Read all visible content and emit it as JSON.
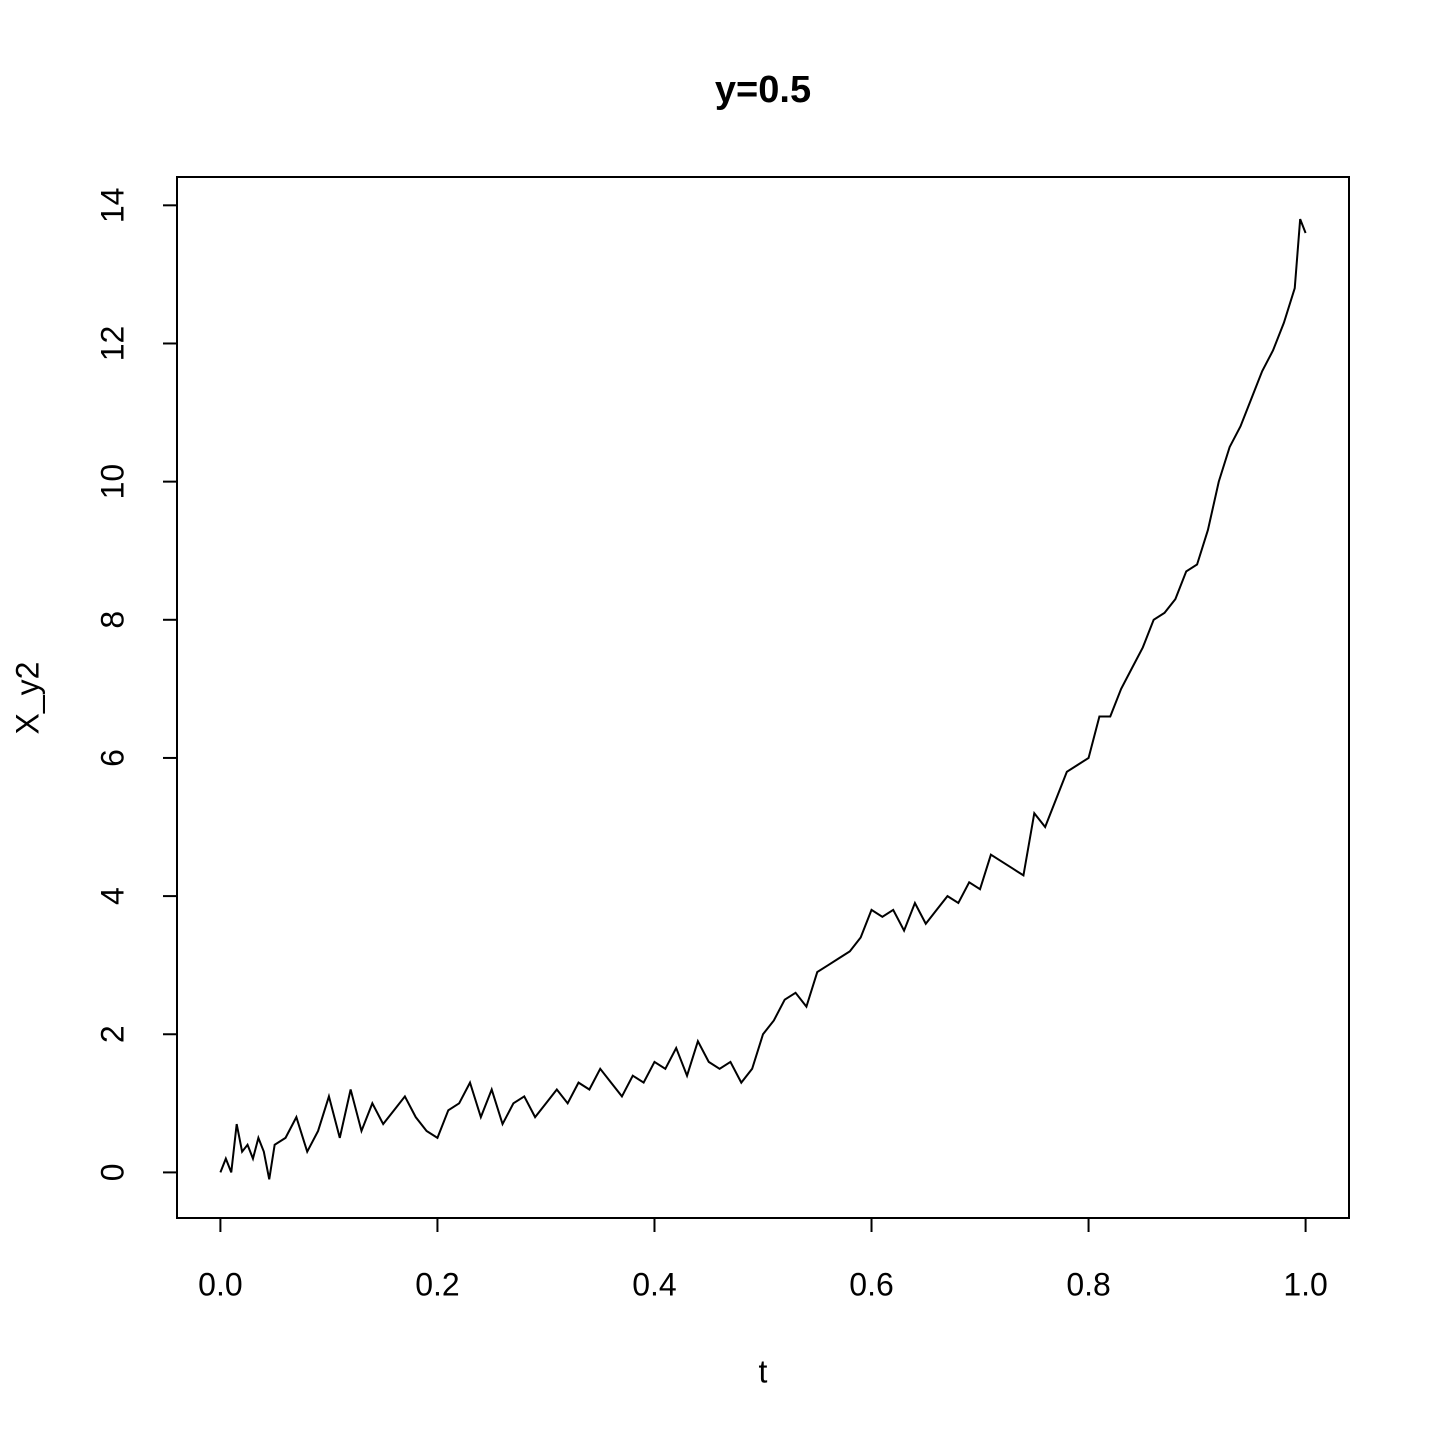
{
  "chart_data": {
    "type": "line",
    "title": "y=0.5",
    "xlabel": "t",
    "ylabel": "X_y2",
    "x": [
      0,
      0.005,
      0.01,
      0.015,
      0.02,
      0.025,
      0.03,
      0.035,
      0.04,
      0.045,
      0.05,
      0.06,
      0.07,
      0.08,
      0.09,
      0.1,
      0.11,
      0.12,
      0.13,
      0.14,
      0.15,
      0.16,
      0.17,
      0.18,
      0.19,
      0.2,
      0.21,
      0.22,
      0.23,
      0.24,
      0.25,
      0.26,
      0.27,
      0.28,
      0.29,
      0.3,
      0.31,
      0.32,
      0.33,
      0.34,
      0.35,
      0.36,
      0.37,
      0.38,
      0.39,
      0.4,
      0.41,
      0.42,
      0.43,
      0.44,
      0.45,
      0.46,
      0.47,
      0.48,
      0.49,
      0.5,
      0.51,
      0.52,
      0.53,
      0.54,
      0.55,
      0.56,
      0.57,
      0.58,
      0.59,
      0.6,
      0.61,
      0.62,
      0.63,
      0.64,
      0.65,
      0.66,
      0.67,
      0.68,
      0.69,
      0.7,
      0.71,
      0.72,
      0.73,
      0.74,
      0.75,
      0.76,
      0.77,
      0.78,
      0.79,
      0.8,
      0.81,
      0.82,
      0.83,
      0.84,
      0.85,
      0.86,
      0.87,
      0.88,
      0.89,
      0.9,
      0.91,
      0.92,
      0.93,
      0.94,
      0.95,
      0.96,
      0.97,
      0.98,
      0.99,
      0.995,
      1
    ],
    "series": [
      {
        "name": "X_y2",
        "color": "#000000",
        "values": [
          0,
          0.2,
          0,
          0.7,
          0.3,
          0.4,
          0.2,
          0.5,
          0.3,
          -0.1,
          0.4,
          0.5,
          0.8,
          0.3,
          0.6,
          1.1,
          0.5,
          1.2,
          0.6,
          1.0,
          0.7,
          0.9,
          1.1,
          0.8,
          0.6,
          0.5,
          0.9,
          1.0,
          1.3,
          0.8,
          1.2,
          0.7,
          1.0,
          1.1,
          0.8,
          1.0,
          1.2,
          1.0,
          1.3,
          1.2,
          1.5,
          1.3,
          1.1,
          1.4,
          1.3,
          1.6,
          1.5,
          1.8,
          1.4,
          1.9,
          1.6,
          1.5,
          1.6,
          1.3,
          1.5,
          2.0,
          2.2,
          2.5,
          2.6,
          2.4,
          2.9,
          3.0,
          3.1,
          3.2,
          3.4,
          3.8,
          3.7,
          3.8,
          3.5,
          3.9,
          3.6,
          3.8,
          4.0,
          3.9,
          4.2,
          4.1,
          4.6,
          4.5,
          4.4,
          4.3,
          5.2,
          5.0,
          5.4,
          5.8,
          5.9,
          6.0,
          6.6,
          6.6,
          7.0,
          7.3,
          7.6,
          8.0,
          8.1,
          8.3,
          8.7,
          8.8,
          9.3,
          10.0,
          10.5,
          10.8,
          11.2,
          11.6,
          11.9,
          12.3,
          12.8,
          13.8,
          13.6
        ]
      }
    ],
    "xlim": [
      -0.04,
      1.04
    ],
    "ylim": [
      -0.66,
      14.41
    ],
    "xticks": [
      {
        "value": 0,
        "label": "0.0"
      },
      0.2,
      0.4,
      0.6,
      0.8,
      {
        "value": 1,
        "label": "1.0"
      }
    ],
    "yticks": [
      0,
      2,
      4,
      6,
      8,
      10,
      12,
      14
    ]
  }
}
